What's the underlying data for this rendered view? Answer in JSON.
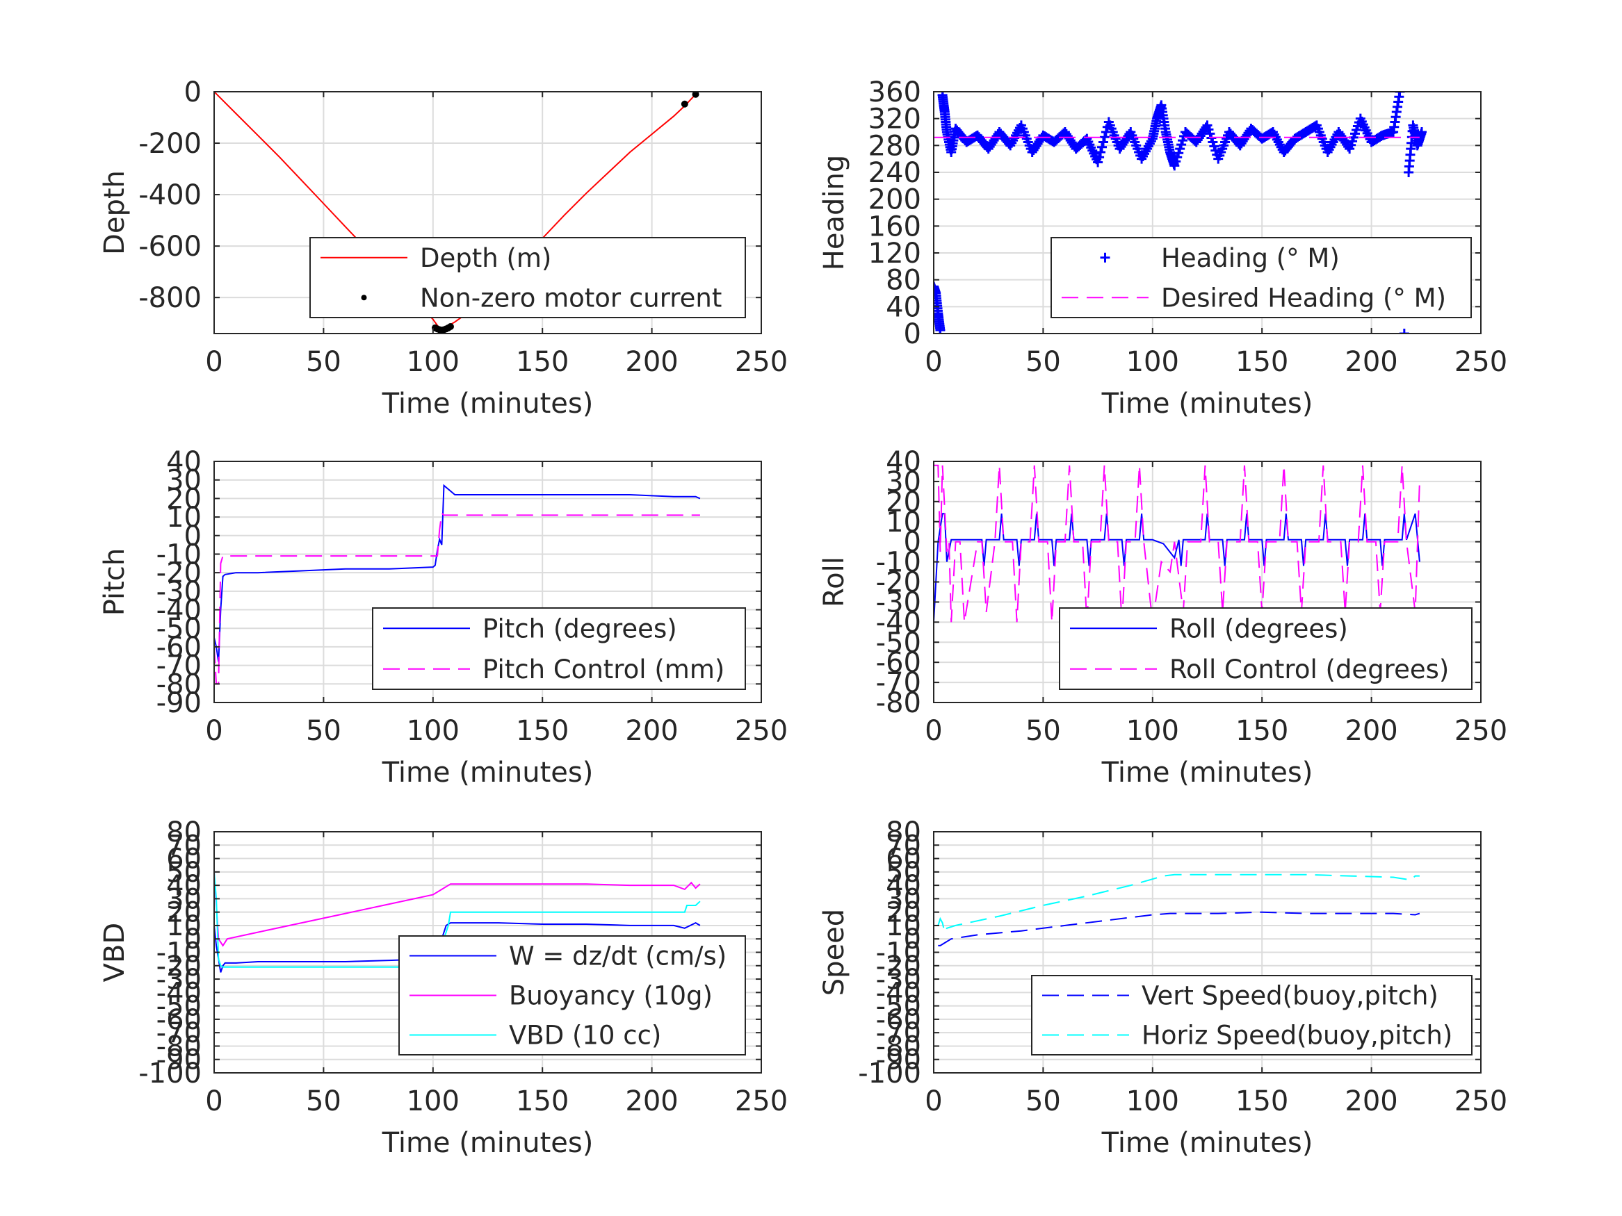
{
  "chart_data": [
    {
      "id": "depth",
      "type": "line",
      "xlabel": "Time (minutes)",
      "ylabel": "Depth",
      "xlim": [
        0,
        250
      ],
      "ylim": [
        -940,
        0
      ],
      "xticks": [
        0,
        50,
        100,
        150,
        200,
        250
      ],
      "yticks": [
        0,
        -200,
        -400,
        -600,
        -800
      ],
      "grid": true,
      "legend_placement": "lower-right",
      "series": [
        {
          "name": "Depth (m)",
          "color": "#ff0000",
          "style": "solid",
          "x": [
            0,
            10,
            20,
            30,
            40,
            50,
            60,
            70,
            80,
            90,
            100,
            103,
            106,
            110,
            120,
            130,
            140,
            150,
            160,
            170,
            180,
            190,
            200,
            210,
            215,
            220
          ],
          "y": [
            0,
            -85,
            -170,
            -255,
            -345,
            -435,
            -525,
            -615,
            -705,
            -795,
            -885,
            -920,
            -915,
            -895,
            -835,
            -760,
            -665,
            -570,
            -480,
            -395,
            -315,
            -235,
            -165,
            -95,
            -55,
            -10
          ]
        },
        {
          "name": "Non-zero motor current",
          "color": "#000000",
          "style": "dots",
          "x": [
            101,
            102,
            103,
            104,
            105,
            106,
            107,
            108,
            215,
            220
          ],
          "y": [
            -918,
            -922,
            -925,
            -927,
            -925,
            -922,
            -918,
            -913,
            -48,
            -10
          ]
        }
      ]
    },
    {
      "id": "heading",
      "type": "scatter",
      "xlabel": "Time (minutes)",
      "ylabel": "Heading",
      "xlim": [
        0,
        250
      ],
      "ylim": [
        0,
        360
      ],
      "xticks": [
        0,
        50,
        100,
        150,
        200,
        250
      ],
      "yticks": [
        0,
        40,
        80,
        120,
        160,
        200,
        240,
        280,
        320,
        360
      ],
      "grid": true,
      "legend_placement": "lower-right",
      "series": [
        {
          "name": "Heading (° M)",
          "color": "#0000ff",
          "style": "plus",
          "x": [
            0,
            1,
            2,
            3,
            4,
            5,
            6,
            8,
            10,
            15,
            20,
            25,
            30,
            35,
            40,
            45,
            50,
            55,
            60,
            65,
            70,
            75,
            80,
            85,
            90,
            95,
            100,
            102,
            104,
            106,
            108,
            110,
            115,
            120,
            125,
            130,
            135,
            140,
            145,
            150,
            155,
            160,
            165,
            170,
            175,
            180,
            185,
            190,
            195,
            200,
            205,
            210,
            213,
            215,
            217,
            219,
            221,
            223
          ],
          "y": [
            70,
            60,
            30,
            5,
            355,
            330,
            300,
            270,
            305,
            285,
            295,
            275,
            300,
            280,
            310,
            270,
            295,
            285,
            300,
            275,
            290,
            255,
            315,
            275,
            300,
            260,
            290,
            320,
            340,
            300,
            270,
            250,
            300,
            285,
            310,
            260,
            300,
            280,
            305,
            290,
            300,
            270,
            290,
            300,
            310,
            270,
            300,
            275,
            320,
            285,
            295,
            300,
            360,
            0,
            240,
            310,
            280,
            300
          ]
        },
        {
          "name": "Desired Heading (° M)",
          "color": "#ff00ff",
          "style": "dashed",
          "x": [
            0,
            222
          ],
          "y": [
            292,
            292
          ]
        }
      ]
    },
    {
      "id": "pitch",
      "type": "line",
      "xlabel": "Time (minutes)",
      "ylabel": "Pitch",
      "xlim": [
        0,
        250
      ],
      "ylim": [
        -90,
        40
      ],
      "xticks": [
        0,
        50,
        100,
        150,
        200,
        250
      ],
      "yticks": [
        40,
        30,
        20,
        10,
        0,
        -10,
        -20,
        -30,
        -40,
        -50,
        -60,
        -70,
        -80,
        -90
      ],
      "grid": true,
      "legend_placement": "lower-right",
      "series": [
        {
          "name": "Pitch (degrees)",
          "color": "#0000ff",
          "style": "solid",
          "x": [
            0,
            1,
            2,
            3,
            4,
            5,
            10,
            20,
            40,
            60,
            80,
            100,
            101,
            102,
            103,
            104,
            105,
            110,
            130,
            150,
            170,
            190,
            210,
            220,
            222
          ],
          "y": [
            -55,
            -60,
            -68,
            -40,
            -22,
            -21,
            -20,
            -20,
            -19,
            -18,
            -18,
            -17,
            -16,
            -8,
            -2,
            -5,
            27,
            22,
            22,
            22,
            22,
            22,
            21,
            21,
            20
          ]
        },
        {
          "name": "Pitch Control (mm)",
          "color": "#ff00ff",
          "style": "dashed",
          "x": [
            0,
            1,
            2,
            3,
            4,
            5,
            102,
            103,
            104,
            105,
            222
          ],
          "y": [
            -60,
            -80,
            -80,
            -15,
            -11,
            -11,
            -11,
            3,
            12,
            11,
            11
          ]
        }
      ]
    },
    {
      "id": "roll",
      "type": "line",
      "xlabel": "Time (minutes)",
      "ylabel": "Roll",
      "xlim": [
        0,
        250
      ],
      "ylim": [
        -80,
        40
      ],
      "xticks": [
        0,
        50,
        100,
        150,
        200,
        250
      ],
      "yticks": [
        40,
        30,
        20,
        10,
        0,
        -10,
        -20,
        -30,
        -40,
        -50,
        -60,
        -70,
        -80
      ],
      "grid": true,
      "legend_placement": "lower-right",
      "series": [
        {
          "name": "Roll (degrees)",
          "color": "#0000ff",
          "style": "solid",
          "x": [
            0,
            2,
            4,
            5,
            6,
            8,
            9,
            10,
            22,
            23,
            24,
            30,
            31,
            32,
            38,
            39,
            40,
            46,
            47,
            48,
            54,
            55,
            56,
            62,
            63,
            64,
            70,
            71,
            72,
            78,
            79,
            80,
            86,
            87,
            88,
            94,
            95,
            96,
            100,
            105,
            110,
            112,
            113,
            114,
            124,
            125,
            126,
            132,
            133,
            134,
            142,
            143,
            144,
            150,
            151,
            152,
            160,
            161,
            162,
            168,
            169,
            170,
            178,
            179,
            180,
            188,
            189,
            190,
            196,
            197,
            198,
            204,
            205,
            206,
            214,
            215,
            216,
            220,
            222
          ],
          "y": [
            -40,
            0,
            14,
            14,
            -10,
            1,
            1,
            1,
            1,
            -12,
            1,
            1,
            14,
            1,
            1,
            -12,
            1,
            1,
            14,
            1,
            1,
            -12,
            1,
            1,
            14,
            1,
            1,
            -12,
            1,
            1,
            14,
            1,
            1,
            -12,
            1,
            1,
            14,
            1,
            1,
            -1,
            -8,
            1,
            -12,
            1,
            1,
            14,
            1,
            1,
            -12,
            1,
            1,
            14,
            1,
            1,
            -12,
            1,
            1,
            14,
            1,
            1,
            -12,
            1,
            1,
            14,
            1,
            1,
            -12,
            1,
            1,
            14,
            1,
            1,
            -12,
            1,
            1,
            14,
            1,
            14,
            -10
          ]
        },
        {
          "name": "Roll Control (degrees)",
          "color": "#ff00ff",
          "style": "dashed",
          "x": [
            0,
            2,
            3,
            4,
            6,
            7,
            8,
            10,
            12,
            14,
            20,
            22,
            24,
            28,
            30,
            32,
            36,
            38,
            40,
            44,
            46,
            48,
            52,
            54,
            56,
            60,
            62,
            64,
            68,
            70,
            72,
            76,
            78,
            80,
            84,
            86,
            88,
            92,
            94,
            96,
            100,
            104,
            108,
            110,
            114,
            116,
            122,
            124,
            126,
            130,
            132,
            134,
            140,
            142,
            144,
            148,
            150,
            152,
            158,
            160,
            162,
            166,
            168,
            170,
            176,
            178,
            180,
            186,
            188,
            190,
            194,
            196,
            198,
            202,
            204,
            206,
            212,
            214,
            216,
            220,
            222
          ],
          "y": [
            38,
            38,
            -5,
            38,
            -5,
            0,
            -40,
            0,
            0,
            -40,
            0,
            0,
            -35,
            0,
            38,
            0,
            0,
            -40,
            0,
            0,
            38,
            0,
            0,
            -40,
            0,
            0,
            38,
            0,
            0,
            -40,
            0,
            0,
            38,
            0,
            0,
            -40,
            0,
            0,
            38,
            0,
            -40,
            -10,
            -15,
            0,
            -35,
            0,
            0,
            38,
            0,
            0,
            -35,
            0,
            0,
            38,
            0,
            0,
            -35,
            0,
            0,
            38,
            0,
            0,
            -35,
            0,
            0,
            38,
            0,
            0,
            -35,
            0,
            0,
            38,
            0,
            0,
            -35,
            0,
            0,
            38,
            0,
            -35,
            30
          ]
        }
      ]
    },
    {
      "id": "vbd",
      "type": "line",
      "xlabel": "Time (minutes)",
      "ylabel": "VBD",
      "xlim": [
        0,
        250
      ],
      "ylim": [
        -100,
        80
      ],
      "xticks": [
        0,
        50,
        100,
        150,
        200,
        250
      ],
      "yticks": [
        80,
        70,
        60,
        50,
        40,
        30,
        20,
        10,
        0,
        -10,
        -20,
        -30,
        -40,
        -50,
        -60,
        -70,
        -80,
        -90,
        -100
      ],
      "ytick_labels": [
        "80",
        "70",
        "60",
        "50",
        "40",
        "30",
        "20",
        "10",
        "0",
        "-10",
        "-20",
        "-30",
        "-40",
        "-50",
        "-60",
        "-70",
        "-80",
        "-90",
        "-100"
      ],
      "grid": true,
      "legend_placement": "lower-right",
      "series": [
        {
          "name": "W = dz/dt (cm/s)",
          "color": "#0000ff",
          "style": "solid",
          "x": [
            0,
            1,
            2,
            3,
            4,
            5,
            10,
            20,
            40,
            60,
            80,
            98,
            100,
            102,
            104,
            106,
            108,
            130,
            150,
            170,
            190,
            210,
            215,
            220,
            222
          ],
          "y": [
            10,
            -5,
            -15,
            -25,
            -20,
            -18,
            -18,
            -17,
            -17,
            -17,
            -16,
            -15,
            -10,
            -5,
            0,
            10,
            12,
            12,
            11,
            11,
            10,
            10,
            8,
            12,
            10
          ]
        },
        {
          "name": "Buoyancy (10g)",
          "color": "#ff00ff",
          "style": "solid",
          "x": [
            0,
            2,
            4,
            6,
            20,
            40,
            60,
            80,
            100,
            108,
            130,
            150,
            170,
            190,
            210,
            215,
            218,
            220,
            222
          ],
          "y": [
            50,
            0,
            -5,
            0,
            5,
            12,
            19,
            26,
            33,
            41,
            41,
            41,
            41,
            40,
            40,
            37,
            42,
            38,
            41
          ]
        },
        {
          "name": "VBD (10 cc)",
          "color": "#00ffff",
          "style": "solid",
          "x": [
            0,
            1,
            2,
            3,
            4,
            6,
            50,
            100,
            103,
            105,
            107,
            108,
            150,
            200,
            215,
            216,
            220,
            222
          ],
          "y": [
            50,
            30,
            -15,
            -20,
            -21,
            -21,
            -21,
            -21,
            -10,
            0,
            10,
            20,
            20,
            20,
            20,
            25,
            25,
            28
          ]
        }
      ]
    },
    {
      "id": "speed",
      "type": "line",
      "xlabel": "Time (minutes)",
      "ylabel": "Speed",
      "xlim": [
        0,
        250
      ],
      "ylim": [
        -100,
        80
      ],
      "xticks": [
        0,
        50,
        100,
        150,
        200,
        250
      ],
      "yticks": [
        80,
        70,
        60,
        50,
        40,
        30,
        20,
        10,
        0,
        -10,
        -20,
        -30,
        -40,
        -50,
        -60,
        -70,
        -80,
        -90,
        -100
      ],
      "ytick_labels": [
        "80",
        "70",
        "60",
        "50",
        "40",
        "30",
        "20",
        "10",
        "0",
        "-10",
        "-20",
        "-30",
        "-40",
        "-50",
        "-60",
        "-70",
        "-80",
        "-90",
        "-100"
      ],
      "grid": true,
      "legend_placement": "lower-right",
      "series": [
        {
          "name": "Vert Speed(buoy,pitch)",
          "color": "#0000ff",
          "style": "dashed",
          "x": [
            2,
            3,
            5,
            8,
            20,
            40,
            60,
            80,
            100,
            108,
            130,
            150,
            170,
            190,
            210,
            220,
            222
          ],
          "y": [
            -5,
            -5,
            -3,
            0,
            3,
            6,
            10,
            14,
            18,
            19,
            19,
            20,
            19,
            19,
            19,
            18,
            19
          ]
        },
        {
          "name": "Horiz Speed(buoy,pitch)",
          "color": "#00ffff",
          "style": "dashed",
          "x": [
            2,
            3,
            4,
            5,
            6,
            10,
            30,
            50,
            70,
            90,
            105,
            110,
            130,
            150,
            170,
            190,
            210,
            218,
            220,
            222
          ],
          "y": [
            10,
            15,
            12,
            5,
            8,
            10,
            17,
            25,
            32,
            40,
            47,
            48,
            48,
            48,
            48,
            47,
            46,
            44,
            47,
            47
          ]
        }
      ]
    }
  ]
}
